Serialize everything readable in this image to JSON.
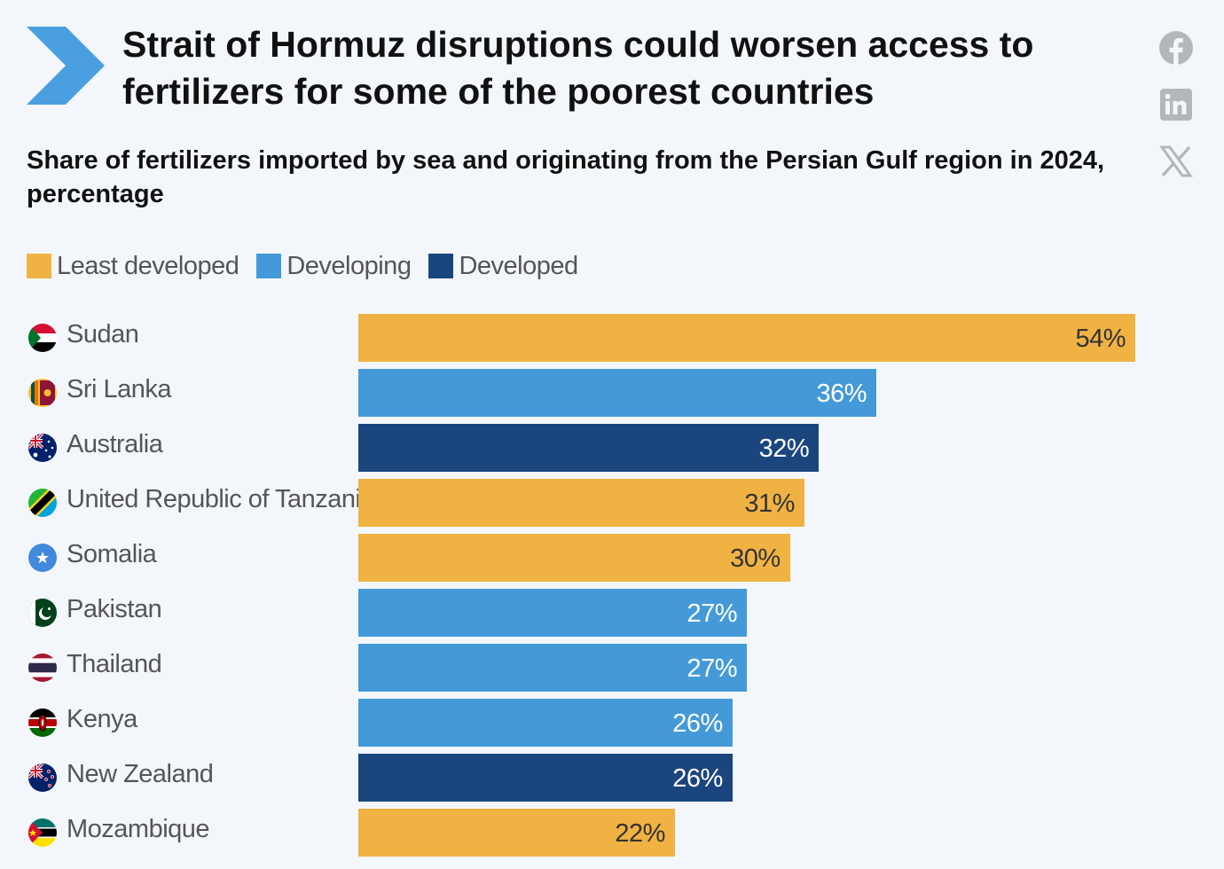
{
  "header": {
    "title": "Strait of Hormuz disruptions could worsen access to fertilizers for some of the poorest countries",
    "subtitle": "Share of fertilizers imported by sea and originating from the Persian Gulf region in 2024, percentage"
  },
  "social": {
    "facebook_icon": "facebook-icon",
    "linkedin_icon": "linkedin-icon",
    "x_icon": "x-icon"
  },
  "legend": [
    {
      "label": "Least developed",
      "color": "#f0b243"
    },
    {
      "label": "Developing",
      "color": "#449ad8"
    },
    {
      "label": "Developed",
      "color": "#1b467d"
    }
  ],
  "chart_data": {
    "type": "bar",
    "orientation": "horizontal",
    "title": "Strait of Hormuz disruptions could worsen access to fertilizers for some of the poorest countries",
    "subtitle": "Share of fertilizers imported by sea and originating from the Persian Gulf region in 2024, percentage",
    "xlim": [
      0,
      54
    ],
    "categories": [
      "Sudan",
      "Sri Lanka",
      "Australia",
      "United Republic of Tanzania",
      "Somalia",
      "Pakistan",
      "Thailand",
      "Kenya",
      "New Zealand",
      "Mozambique"
    ],
    "values": [
      54,
      36,
      32,
      31,
      30,
      27,
      27,
      26,
      26,
      22
    ],
    "labels": [
      "54%",
      "36%",
      "32%",
      "31%",
      "30%",
      "27%",
      "27%",
      "26%",
      "26%",
      "22%"
    ],
    "groups": [
      "Least developed",
      "Developing",
      "Developed",
      "Least developed",
      "Least developed",
      "Developing",
      "Developing",
      "Developing",
      "Developed",
      "Least developed"
    ],
    "flags": [
      "sudan-flag-icon",
      "sri-lanka-flag-icon",
      "australia-flag-icon",
      "tanzania-flag-icon",
      "somalia-flag-icon",
      "pakistan-flag-icon",
      "thailand-flag-icon",
      "kenya-flag-icon",
      "new-zealand-flag-icon",
      "mozambique-flag-icon"
    ],
    "group_colors": {
      "Least developed": "#f0b243",
      "Developing": "#449ad8",
      "Developed": "#1b467d"
    },
    "label_colors": {
      "Least developed": "#333333",
      "Developing": "#ffffff",
      "Developed": "#ffffff"
    }
  }
}
